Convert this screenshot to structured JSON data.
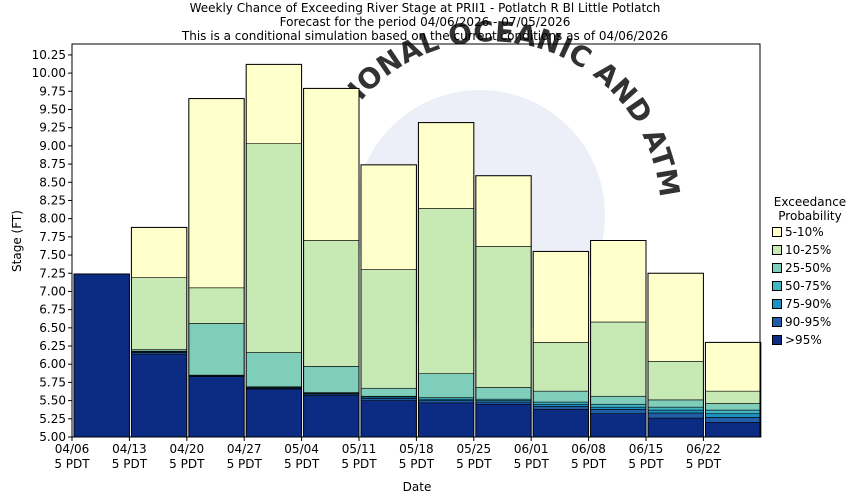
{
  "title": {
    "line1": "Weekly Chance of Exceeding River Stage at PRII1 - Potlatch R Bl Little Potlatch",
    "line2": "Forecast for the period 04/06/2026 - 07/05/2026",
    "line3": "This is a conditional simulation based on the current conditions as of 04/06/2026"
  },
  "watermark": "NATIONAL OCEANIC AND ATMOSPHERIC ADMINISTRATION",
  "legend": {
    "title_line1": "Exceedance",
    "title_line2": "Probability",
    "items": [
      {
        "label": "5-10%",
        "color": "#ffffcc"
      },
      {
        "label": "10-25%",
        "color": "#c7e9b4"
      },
      {
        "label": "25-50%",
        "color": "#7fcdbb"
      },
      {
        "label": "50-75%",
        "color": "#41b6c4"
      },
      {
        "label": "75-90%",
        "color": "#1d91c0"
      },
      {
        "label": "90-95%",
        "color": "#225ea8"
      },
      {
        "label": ">95%",
        "color": "#0c2c84"
      }
    ]
  },
  "chart_data": {
    "type": "bar",
    "subtype": "floating stacked bar (exceedance bands)",
    "xlabel": "Date",
    "ylabel": "Stage (FT)",
    "ylim": [
      5.0,
      10.4
    ],
    "yticks": [
      "5.00",
      "5.25",
      "5.50",
      "5.75",
      "6.00",
      "6.25",
      "6.50",
      "6.75",
      "7.00",
      "7.25",
      "7.50",
      "7.75",
      "8.00",
      "8.25",
      "8.50",
      "8.75",
      "9.00",
      "9.25",
      "9.50",
      "9.75",
      "10.00",
      "10.25"
    ],
    "xticks": [
      {
        "date": "04/06",
        "tz": "5 PDT"
      },
      {
        "date": "04/13",
        "tz": "5 PDT"
      },
      {
        "date": "04/20",
        "tz": "5 PDT"
      },
      {
        "date": "04/27",
        "tz": "5 PDT"
      },
      {
        "date": "05/04",
        "tz": "5 PDT"
      },
      {
        "date": "05/11",
        "tz": "5 PDT"
      },
      {
        "date": "05/18",
        "tz": "5 PDT"
      },
      {
        "date": "05/25",
        "tz": "5 PDT"
      },
      {
        "date": "06/01",
        "tz": "5 PDT"
      },
      {
        "date": "06/08",
        "tz": "5 PDT"
      },
      {
        "date": "06/15",
        "tz": "5 PDT"
      },
      {
        "date": "06/22",
        "tz": "5 PDT"
      }
    ],
    "series_order": [
      "95%",
      "90%",
      "75%",
      "50%",
      "25%",
      "10%",
      "5%"
    ],
    "grid": false,
    "legend_position": "right",
    "weeks": [
      {
        "start": "04/06",
        "stages": {
          "95%": 7.24,
          "90%": 7.24,
          "75%": 7.24,
          "50%": 7.24,
          "25%": 7.24,
          "10%": 7.24,
          "5%": 7.24
        }
      },
      {
        "start": "04/13",
        "stages": {
          "95%": 6.14,
          "90%": 6.16,
          "75%": 6.17,
          "50%": 6.18,
          "25%": 6.2,
          "10%": 7.19,
          "5%": 7.88
        }
      },
      {
        "start": "04/20",
        "stages": {
          "95%": 5.83,
          "90%": 5.84,
          "75%": 5.84,
          "50%": 5.85,
          "25%": 6.56,
          "10%": 7.05,
          "5%": 9.65
        }
      },
      {
        "start": "04/27",
        "stages": {
          "95%": 5.66,
          "90%": 5.67,
          "75%": 5.68,
          "50%": 5.69,
          "25%": 6.16,
          "10%": 9.03,
          "5%": 10.12
        }
      },
      {
        "start": "05/04",
        "stages": {
          "95%": 5.57,
          "90%": 5.59,
          "75%": 5.6,
          "50%": 5.61,
          "25%": 5.97,
          "10%": 7.7,
          "5%": 9.79
        }
      },
      {
        "start": "05/11",
        "stages": {
          "95%": 5.5,
          "90%": 5.53,
          "75%": 5.55,
          "50%": 5.56,
          "25%": 5.67,
          "10%": 7.3,
          "5%": 8.74
        }
      },
      {
        "start": "05/18",
        "stages": {
          "95%": 5.47,
          "90%": 5.5,
          "75%": 5.52,
          "50%": 5.54,
          "25%": 5.87,
          "10%": 8.14,
          "5%": 9.32
        }
      },
      {
        "start": "05/25",
        "stages": {
          "95%": 5.45,
          "90%": 5.48,
          "75%": 5.5,
          "50%": 5.52,
          "25%": 5.68,
          "10%": 7.62,
          "5%": 8.59
        }
      },
      {
        "start": "06/01",
        "stages": {
          "95%": 5.38,
          "90%": 5.42,
          "75%": 5.45,
          "50%": 5.48,
          "25%": 5.63,
          "10%": 6.3,
          "5%": 7.55
        }
      },
      {
        "start": "06/08",
        "stages": {
          "95%": 5.32,
          "90%": 5.38,
          "75%": 5.41,
          "50%": 5.45,
          "25%": 5.56,
          "10%": 6.58,
          "5%": 7.7
        }
      },
      {
        "start": "06/15",
        "stages": {
          "95%": 5.26,
          "90%": 5.33,
          "75%": 5.37,
          "50%": 5.41,
          "25%": 5.51,
          "10%": 6.04,
          "5%": 7.25
        }
      },
      {
        "start": "06/22",
        "stages": {
          "95%": 5.2,
          "90%": 5.27,
          "75%": 5.32,
          "50%": 5.37,
          "25%": 5.46,
          "10%": 5.63,
          "5%": 6.3
        }
      }
    ]
  }
}
